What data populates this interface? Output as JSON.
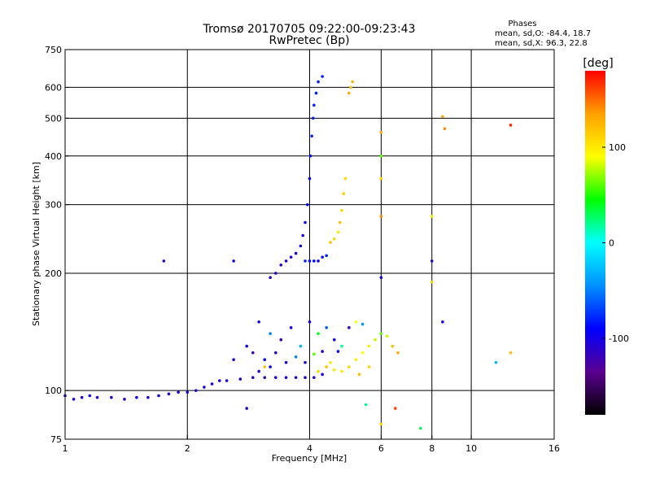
{
  "chart_data": {
    "type": "scatter",
    "title": "Tromsø 20170705 09:22:00-09:23:43",
    "subtitle": "RwPretec (Bp)",
    "xlabel": "Frequency [MHz]",
    "ylabel": "Stationary phase Virtual Height [km]",
    "x_scale": "log2",
    "y_scale": "log",
    "xlim": [
      1,
      16
    ],
    "ylim": [
      75,
      750
    ],
    "x_ticks": [
      1,
      2,
      4,
      6,
      8,
      10,
      16
    ],
    "x_tick_labels": [
      "1",
      "2",
      "4",
      "6",
      "8",
      "10",
      "16"
    ],
    "x_grid": [
      2,
      4,
      6,
      8,
      10
    ],
    "y_ticks": [
      75,
      100,
      200,
      300,
      400,
      500,
      600,
      750
    ],
    "y_tick_labels": [
      "75",
      "100",
      "200",
      "300",
      "400",
      "500",
      "600",
      "750"
    ],
    "y_grid": [
      100,
      200,
      300,
      400,
      500,
      600
    ],
    "grid": true,
    "colorbar": {
      "label": "[deg]",
      "range": [
        -180,
        180
      ],
      "ticks": [
        100,
        0,
        -100
      ],
      "tick_labels": [
        "100",
        "0",
        "-100"
      ],
      "colors": [
        "#000000",
        "#5a0090",
        "#0000ff",
        "#0090ff",
        "#00ffff",
        "#00ff00",
        "#ffff00",
        "#ffa000",
        "#ff0000"
      ]
    },
    "legend": {
      "title": "Phases",
      "lines": [
        "mean, sd,O: -84.4, 18.7",
        "mean, sd,X:  96.3, 22.8"
      ]
    },
    "series": [
      {
        "points": [
          [
            1.0,
            97,
            -110
          ],
          [
            1.05,
            95,
            -105
          ],
          [
            1.1,
            96,
            -100
          ],
          [
            1.15,
            97,
            -100
          ],
          [
            1.2,
            96,
            -105
          ],
          [
            1.3,
            96,
            -100
          ],
          [
            1.4,
            95,
            -105
          ],
          [
            1.5,
            96,
            -100
          ],
          [
            1.6,
            96,
            -105
          ],
          [
            1.7,
            97,
            -100
          ],
          [
            1.8,
            98,
            -110
          ],
          [
            1.9,
            99,
            -100
          ],
          [
            2.0,
            99,
            -100
          ],
          [
            2.1,
            100,
            -105
          ],
          [
            2.2,
            102,
            -100
          ],
          [
            2.3,
            104,
            -100
          ],
          [
            2.4,
            106,
            -105
          ],
          [
            2.5,
            106,
            -100
          ],
          [
            2.7,
            107,
            -110
          ],
          [
            2.9,
            108,
            -105
          ],
          [
            3.1,
            108,
            -115
          ],
          [
            3.3,
            108,
            -110
          ],
          [
            3.5,
            108,
            -105
          ],
          [
            3.7,
            108,
            -110
          ],
          [
            3.9,
            108,
            -105
          ],
          [
            4.1,
            108,
            -110
          ],
          [
            4.3,
            110,
            -100
          ]
        ]
      },
      {
        "points": [
          [
            3.2,
            195,
            -120
          ],
          [
            3.3,
            200,
            -110
          ],
          [
            3.4,
            210,
            -110
          ],
          [
            3.5,
            215,
            -100
          ],
          [
            3.6,
            220,
            -105
          ],
          [
            3.7,
            225,
            -100
          ],
          [
            3.8,
            235,
            -100
          ],
          [
            3.85,
            250,
            -100
          ],
          [
            3.9,
            270,
            -95
          ],
          [
            3.95,
            300,
            -90
          ],
          [
            4.0,
            350,
            -90
          ],
          [
            4.02,
            400,
            -85
          ],
          [
            4.05,
            450,
            -80
          ],
          [
            4.08,
            500,
            -80
          ],
          [
            4.1,
            540,
            -80
          ],
          [
            4.15,
            580,
            -80
          ],
          [
            4.2,
            620,
            -80
          ],
          [
            4.3,
            640,
            -80
          ]
        ]
      },
      {
        "points": [
          [
            3.9,
            215,
            -80
          ],
          [
            4.0,
            215,
            -85
          ],
          [
            4.1,
            215,
            -90
          ],
          [
            4.2,
            215,
            -90
          ],
          [
            4.3,
            220,
            -85
          ],
          [
            4.4,
            222,
            -80
          ]
        ]
      },
      {
        "points": [
          [
            4.5,
            240,
            120
          ],
          [
            4.6,
            245,
            110
          ],
          [
            4.7,
            255,
            100
          ],
          [
            4.75,
            270,
            120
          ],
          [
            4.8,
            290,
            110
          ],
          [
            4.85,
            320,
            115
          ],
          [
            4.9,
            350,
            110
          ],
          [
            5.0,
            580,
            130
          ],
          [
            5.05,
            600,
            120
          ],
          [
            5.1,
            620,
            125
          ]
        ]
      },
      {
        "points": [
          [
            4.2,
            112,
            110
          ],
          [
            4.4,
            115,
            120
          ],
          [
            4.6,
            113,
            100
          ],
          [
            4.8,
            112,
            100
          ],
          [
            5.0,
            115,
            110
          ],
          [
            5.2,
            120,
            100
          ],
          [
            5.4,
            125,
            90
          ],
          [
            5.6,
            130,
            100
          ],
          [
            5.8,
            135,
            80
          ],
          [
            6.0,
            140,
            60
          ],
          [
            6.2,
            138,
            80
          ],
          [
            6.4,
            130,
            120
          ],
          [
            6.6,
            125,
            130
          ],
          [
            5.3,
            110,
            120
          ],
          [
            5.6,
            115,
            110
          ]
        ]
      },
      {
        "points": [
          [
            3.0,
            150,
            -100
          ],
          [
            3.2,
            140,
            -50
          ],
          [
            3.4,
            135,
            -120
          ],
          [
            3.6,
            145,
            -100
          ],
          [
            3.8,
            130,
            -30
          ],
          [
            4.0,
            150,
            -100
          ],
          [
            4.2,
            140,
            40
          ],
          [
            4.4,
            145,
            -60
          ],
          [
            4.6,
            135,
            -100
          ],
          [
            4.8,
            130,
            20
          ],
          [
            5.0,
            145,
            -120
          ],
          [
            5.2,
            150,
            90
          ],
          [
            5.4,
            148,
            -40
          ],
          [
            2.9,
            125,
            -120
          ],
          [
            3.1,
            120,
            -90
          ],
          [
            3.3,
            125,
            -110
          ],
          [
            3.5,
            118,
            -100
          ],
          [
            3.7,
            122,
            -50
          ],
          [
            3.9,
            118,
            -100
          ],
          [
            4.1,
            124,
            60
          ],
          [
            4.3,
            126,
            -110
          ],
          [
            4.5,
            118,
            100
          ],
          [
            4.7,
            126,
            -90
          ],
          [
            2.8,
            130,
            -100
          ],
          [
            3.0,
            112,
            -110
          ],
          [
            3.2,
            115,
            -100
          ],
          [
            2.6,
            120,
            -105
          ]
        ]
      },
      {
        "points": [
          [
            1.75,
            215,
            -110
          ],
          [
            2.6,
            215,
            -90
          ],
          [
            3.1,
            115,
            120
          ],
          [
            2.8,
            90,
            -110
          ],
          [
            6.0,
            460,
            130
          ],
          [
            6.0,
            400,
            60
          ],
          [
            6.0,
            350,
            110
          ],
          [
            6.0,
            280,
            140
          ],
          [
            6.0,
            195,
            -100
          ],
          [
            6.0,
            82,
            110
          ],
          [
            8.0,
            280,
            100
          ],
          [
            8.0,
            215,
            -110
          ],
          [
            8.0,
            190,
            110
          ],
          [
            8.5,
            505,
            130
          ],
          [
            8.6,
            470,
            140
          ],
          [
            8.5,
            150,
            -100
          ],
          [
            7.5,
            80,
            30
          ],
          [
            6.5,
            90,
            160
          ],
          [
            11.5,
            118,
            -30
          ],
          [
            12.5,
            480,
            170
          ],
          [
            12.5,
            125,
            120
          ],
          [
            5.5,
            92,
            20
          ]
        ]
      }
    ]
  }
}
